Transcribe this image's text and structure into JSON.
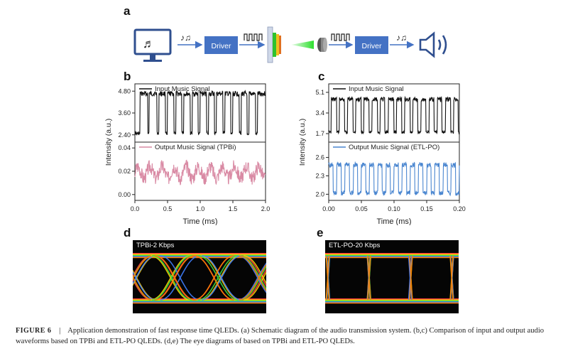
{
  "panels": {
    "a": "a",
    "b": "b",
    "c": "c",
    "d": "d",
    "e": "e"
  },
  "schematic": {
    "driver_left": "Driver",
    "driver_right": "Driver",
    "note_glyph": "♪♫",
    "computer_icon": "computer-with-music-icon",
    "speaker_icon": "speaker-icon",
    "qled_icon": "qled-device-icon",
    "detector_icon": "photodetector-icon",
    "driver_color": "#4472c4"
  },
  "chart_data": [
    {
      "type": "line",
      "panel": "b",
      "ylabel": "Intensity (a.u.)",
      "xlabel": "Time (ms)",
      "xlim": [
        0.0,
        2.0
      ],
      "xticks": [
        "0.0",
        "0.5",
        "1.0",
        "1.5",
        "2.0"
      ],
      "series": [
        {
          "name": "Input Music Signal",
          "color": "#111111",
          "ylim": [
            2.0,
            5.2
          ],
          "yticks": [
            "2.40",
            "3.60",
            "4.80"
          ],
          "shape": "square-wave",
          "levels": [
            2.4,
            4.8
          ],
          "transitions": [
            0.08,
            0.2,
            0.22,
            0.34,
            0.37,
            0.47,
            0.5,
            0.6,
            0.63,
            0.72,
            0.75,
            0.85,
            0.88,
            0.97,
            1.0,
            1.1,
            1.13,
            1.22,
            1.25,
            1.35,
            1.38,
            1.47,
            1.5,
            1.6,
            1.63,
            1.72,
            1.75,
            1.85,
            1.88
          ]
        },
        {
          "name": "Output Music Signal (TPBi)",
          "color": "#d98aa4",
          "ylim": [
            -0.005,
            0.045
          ],
          "yticks": [
            "0.00",
            "0.02",
            "0.04"
          ],
          "shape": "noisy-smoothed",
          "low": 0.013,
          "high": 0.025
        }
      ]
    },
    {
      "type": "line",
      "panel": "c",
      "ylabel": "Intensity (a.u.)",
      "xlabel": "Time (ms)",
      "xlim": [
        0.0,
        0.2
      ],
      "xticks": [
        "0.00",
        "0.05",
        "0.10",
        "0.15",
        "0.20"
      ],
      "series": [
        {
          "name": "Input Music Signal",
          "color": "#111111",
          "ylim": [
            1.0,
            5.8
          ],
          "yticks": [
            "1.7",
            "3.4",
            "5.1"
          ],
          "shape": "square-wave",
          "levels": [
            1.7,
            4.7
          ],
          "period": 0.0125
        },
        {
          "name": "Output Music Signal (ETL-PO)",
          "color": "#4a86d0",
          "ylim": [
            1.9,
            2.85
          ],
          "yticks": [
            "2.0",
            "2.3",
            "2.6"
          ],
          "shape": "noisy-square",
          "levels": [
            2.02,
            2.48
          ],
          "period": 0.0125
        }
      ]
    }
  ],
  "eye_d": {
    "label": "TPBi-2 Kbps"
  },
  "eye_e": {
    "label": "ETL-PO-20 Kbps"
  },
  "caption": {
    "label": "FIGURE 6",
    "separator": "|",
    "text": "Application demonstration of fast response time QLEDs. (a) Schematic diagram of the audio transmission system. (b,c) Comparison of input and output audio waveforms based on TPBi and ETL-PO QLEDs. (d,e) The eye diagrams of based on TPBi and ETL-PO QLEDs."
  }
}
